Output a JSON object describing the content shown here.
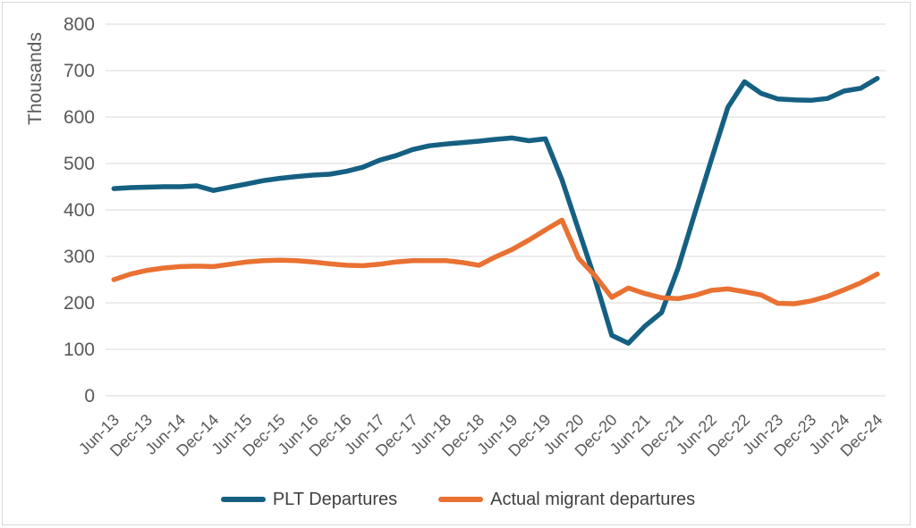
{
  "chart_data": {
    "type": "line",
    "title": "",
    "ylabel": "Thousands",
    "ylim": [
      0,
      800
    ],
    "ytick_interval": 100,
    "grid": "horizontal",
    "legend_position": "bottom-center",
    "y_tick_labels": [
      "0",
      "100",
      "200",
      "300",
      "400",
      "500",
      "600",
      "700",
      "800"
    ],
    "x_tick_labels_shown": [
      "Jun-13",
      "Dec-13",
      "Jun-14",
      "Dec-14",
      "Jun-15",
      "Dec-15",
      "Jun-16",
      "Dec-16",
      "Jun-17",
      "Dec-17",
      "Jun-18",
      "Dec-18",
      "Jun-19",
      "Dec-19",
      "Jun-20",
      "Dec-20",
      "Jun-21",
      "Dec-21",
      "Jun-22",
      "Dec-22",
      "Jun-23",
      "Dec-23",
      "Jun-24",
      "Dec-24"
    ],
    "categories": [
      "Jun-13",
      "Sep-13",
      "Dec-13",
      "Mar-14",
      "Jun-14",
      "Sep-14",
      "Dec-14",
      "Mar-15",
      "Jun-15",
      "Sep-15",
      "Dec-15",
      "Mar-16",
      "Jun-16",
      "Sep-16",
      "Dec-16",
      "Mar-17",
      "Jun-17",
      "Sep-17",
      "Dec-17",
      "Mar-18",
      "Jun-18",
      "Sep-18",
      "Dec-18",
      "Mar-19",
      "Jun-19",
      "Sep-19",
      "Dec-19",
      "Mar-20",
      "Jun-20",
      "Sep-20",
      "Dec-20",
      "Mar-21",
      "Jun-21",
      "Sep-21",
      "Dec-21",
      "Mar-22",
      "Jun-22",
      "Sep-22",
      "Dec-22",
      "Mar-23",
      "Jun-23",
      "Sep-23",
      "Dec-23",
      "Mar-24",
      "Jun-24",
      "Sep-24",
      "Dec-24"
    ],
    "series": [
      {
        "name": "PLT Departures",
        "color": "#156082",
        "values": [
          446,
          448,
          449,
          450,
          450,
          452,
          442,
          449,
          456,
          463,
          468,
          472,
          475,
          477,
          483,
          492,
          507,
          517,
          530,
          538,
          542,
          545,
          548,
          552,
          555,
          549,
          553,
          465,
          357,
          250,
          130,
          113,
          150,
          179,
          275,
          392,
          508,
          621,
          676,
          651,
          639,
          637,
          636,
          640,
          656,
          662,
          683
        ]
      },
      {
        "name": "Actual migrant departures",
        "color": "#E97132",
        "values": [
          250,
          262,
          270,
          275,
          278,
          279,
          278,
          283,
          288,
          291,
          292,
          291,
          288,
          284,
          281,
          280,
          283,
          288,
          291,
          291,
          291,
          287,
          281,
          299,
          315,
          335,
          357,
          378,
          296,
          258,
          212,
          232,
          220,
          211,
          209,
          216,
          227,
          230,
          224,
          217,
          199,
          198,
          204,
          214,
          228,
          243,
          262
        ]
      }
    ]
  }
}
